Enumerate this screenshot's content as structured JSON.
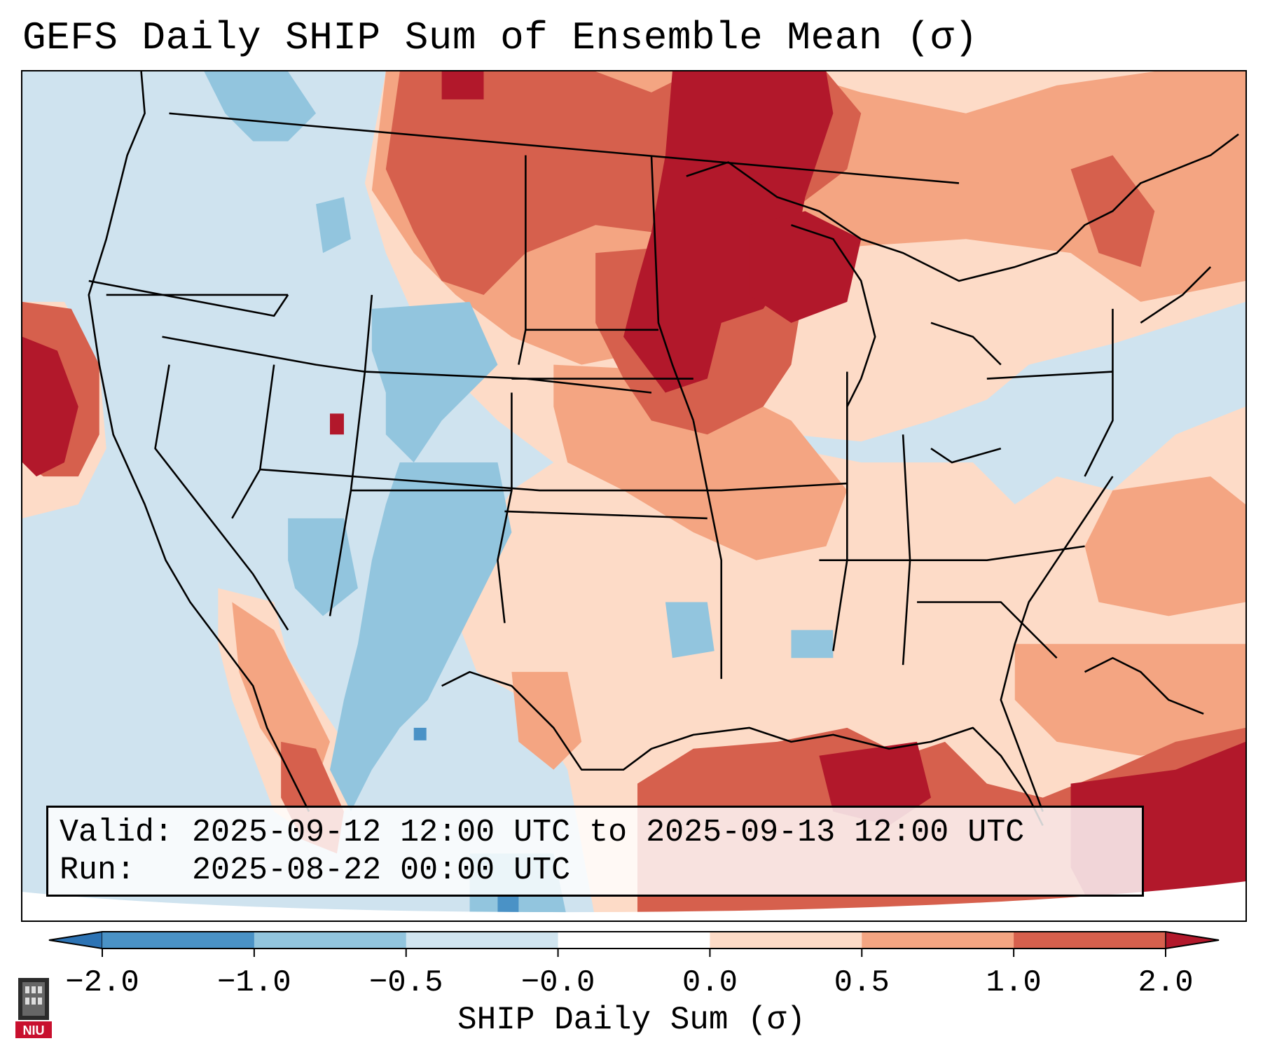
{
  "title": "GEFS Daily SHIP Sum of Ensemble Mean (σ)",
  "info": {
    "valid_label": "Valid:",
    "valid_value": "2025-09-12 12:00 UTC to 2025-09-13 12:00 UTC",
    "run_label": "Run:",
    "run_value": "2025-08-22 00:00 UTC"
  },
  "colorbar": {
    "label": "SHIP Daily Sum (σ)",
    "ticks": [
      "−2.0",
      "−1.0",
      "−0.5",
      "−0.0",
      "0.0",
      "0.5",
      "1.0",
      "2.0"
    ],
    "bins": [
      {
        "range": "< -2.0",
        "color": "#2c73b4"
      },
      {
        "range": "-2.0 to -1.0",
        "color": "#4a92c6"
      },
      {
        "range": "-1.0 to -0.5",
        "color": "#92c5de"
      },
      {
        "range": "-0.5 to -0.0",
        "color": "#d1e5f0"
      },
      {
        "range": "-0.0 to 0.0",
        "color": "#ffffff"
      },
      {
        "range": "0.0 to 0.5",
        "color": "#fddbc7"
      },
      {
        "range": "0.5 to 1.0",
        "color": "#f4a582"
      },
      {
        "range": "1.0 to 2.0",
        "color": "#d6604d"
      },
      {
        "range": "> 2.0",
        "color": "#b2182b"
      }
    ]
  },
  "logo": {
    "text": "NIU",
    "color": "#c8102e"
  },
  "map_colors": {
    "ocean_neutral": "#cfe3ef",
    "very_low": "#4a92c6",
    "low": "#92c5de",
    "near_zero_neg": "#d1e5f0",
    "near_zero_pos": "#fddbc7",
    "moderate": "#f4a582",
    "high": "#d6604d",
    "very_high": "#b2182b"
  }
}
